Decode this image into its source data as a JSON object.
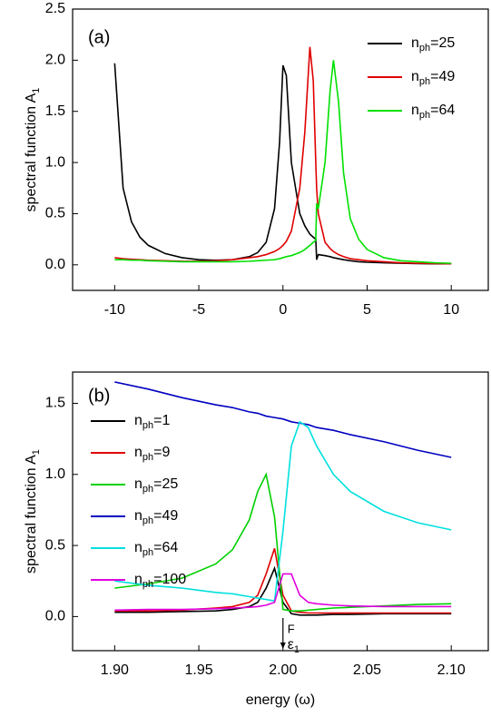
{
  "chart_data": [
    {
      "type": "line",
      "panel_label": "(a)",
      "y_label": "spectral function A1",
      "x": [
        -10,
        -9.5,
        -9,
        -8.5,
        -8,
        -7,
        -6,
        -5,
        -4,
        -3,
        -2,
        -1.5,
        -1,
        -0.5,
        -0.2,
        0,
        0.2,
        0.5,
        1,
        1.3,
        1.6,
        1.8,
        1.95,
        2.0,
        2.1,
        2.5,
        2.8,
        3.0,
        3.3,
        3.6,
        4,
        4.5,
        5,
        6,
        7,
        8,
        9,
        10
      ],
      "series": [
        {
          "name": "nph=25",
          "color": "#000000",
          "values": [
            1.97,
            0.75,
            0.42,
            0.27,
            0.19,
            0.11,
            0.07,
            0.05,
            0.045,
            0.05,
            0.08,
            0.12,
            0.22,
            0.55,
            1.2,
            1.95,
            1.85,
            1.0,
            0.5,
            0.38,
            0.3,
            0.27,
            0.25,
            0.05,
            0.1,
            0.09,
            0.08,
            0.07,
            0.06,
            0.05,
            0.04,
            0.03,
            0.025,
            0.02,
            0.015,
            0.012,
            0.01,
            0.01
          ]
        },
        {
          "name": "nph=49",
          "color": "#e00000",
          "values": [
            0.07,
            0.06,
            0.055,
            0.05,
            0.045,
            0.04,
            0.035,
            0.035,
            0.04,
            0.05,
            0.07,
            0.08,
            0.1,
            0.13,
            0.16,
            0.19,
            0.23,
            0.33,
            0.75,
            1.3,
            2.13,
            1.8,
            1.0,
            0.75,
            0.5,
            0.22,
            0.16,
            0.13,
            0.1,
            0.08,
            0.06,
            0.05,
            0.04,
            0.03,
            0.02,
            0.015,
            0.012,
            0.01
          ]
        },
        {
          "name": "nph=64",
          "color": "#00e000",
          "values": [
            0.05,
            0.05,
            0.045,
            0.045,
            0.04,
            0.035,
            0.03,
            0.03,
            0.03,
            0.03,
            0.035,
            0.04,
            0.045,
            0.05,
            0.06,
            0.07,
            0.08,
            0.09,
            0.12,
            0.15,
            0.19,
            0.22,
            0.24,
            0.6,
            0.55,
            1.0,
            1.7,
            2.0,
            1.6,
            0.9,
            0.45,
            0.25,
            0.15,
            0.07,
            0.04,
            0.03,
            0.02,
            0.015
          ]
        }
      ],
      "xlim": [
        -12.5,
        12.2
      ],
      "xticks": [
        -10,
        -5,
        0,
        5,
        10
      ],
      "ylim": [
        -0.25,
        2.5
      ],
      "yticks": [
        {
          "value": 0,
          "label": "0.0"
        },
        {
          "value": 0.5,
          "label": "0.5"
        },
        {
          "value": 1,
          "label": "1.0"
        },
        {
          "value": 1.5,
          "label": "1.5"
        },
        {
          "value": 2,
          "label": "2.0"
        },
        {
          "value": 2.5,
          "label": "2.5"
        }
      ],
      "legend": "upper right"
    },
    {
      "type": "line",
      "panel_label": "(b)",
      "y_label": "spectral function A1",
      "x_label": "energy (ω)",
      "marker_label": "ε1",
      "marker_superscript": "F",
      "marker_x": 2.0,
      "x": [
        1.9,
        1.92,
        1.94,
        1.96,
        1.97,
        1.98,
        1.985,
        1.99,
        1.995,
        2.0,
        2.005,
        2.01,
        2.015,
        2.02,
        2.03,
        2.04,
        2.06,
        2.08,
        2.1
      ],
      "series": [
        {
          "name": "nph=1",
          "color": "#000000",
          "values": [
            0.03,
            0.03,
            0.035,
            0.04,
            0.05,
            0.07,
            0.1,
            0.2,
            0.34,
            0.1,
            0.02,
            0.01,
            0.01,
            0.01,
            0.015,
            0.015,
            0.02,
            0.02,
            0.02
          ]
        },
        {
          "name": "nph=9",
          "color": "#e00000",
          "values": [
            0.04,
            0.04,
            0.045,
            0.06,
            0.07,
            0.1,
            0.15,
            0.3,
            0.48,
            0.15,
            0.04,
            0.03,
            0.025,
            0.025,
            0.025,
            0.025,
            0.025,
            0.025,
            0.025
          ]
        },
        {
          "name": "nph=25",
          "color": "#00d000",
          "values": [
            0.2,
            0.23,
            0.27,
            0.37,
            0.47,
            0.68,
            0.88,
            1.0,
            0.7,
            0.05,
            0.04,
            0.04,
            0.045,
            0.05,
            0.06,
            0.065,
            0.075,
            0.085,
            0.09
          ]
        },
        {
          "name": "nph=49",
          "color": "#0000c0",
          "values": [
            1.65,
            1.6,
            1.54,
            1.49,
            1.47,
            1.44,
            1.43,
            1.41,
            1.4,
            1.39,
            1.37,
            1.36,
            1.35,
            1.33,
            1.31,
            1.28,
            1.23,
            1.17,
            1.12
          ]
        },
        {
          "name": "nph=64",
          "color": "#00e0e0",
          "values": [
            0.25,
            0.22,
            0.2,
            0.17,
            0.16,
            0.14,
            0.13,
            0.12,
            0.11,
            0.6,
            1.2,
            1.37,
            1.33,
            1.2,
            1.0,
            0.88,
            0.74,
            0.66,
            0.61
          ]
        },
        {
          "name": "nph=100",
          "color": "#e000e0",
          "values": [
            0.045,
            0.05,
            0.05,
            0.055,
            0.06,
            0.065,
            0.07,
            0.08,
            0.1,
            0.3,
            0.3,
            0.15,
            0.1,
            0.09,
            0.08,
            0.075,
            0.07,
            0.07,
            0.07
          ]
        }
      ],
      "xlim": [
        1.875,
        2.122
      ],
      "xticks": [
        {
          "value": 1.9,
          "label": "1.90"
        },
        {
          "value": 1.95,
          "label": "1.95"
        },
        {
          "value": 2.0,
          "label": "2.00"
        },
        {
          "value": 2.05,
          "label": "2.05"
        },
        {
          "value": 2.1,
          "label": "2.10"
        }
      ],
      "ylim": [
        -0.24,
        1.72
      ],
      "yticks": [
        {
          "value": 0,
          "label": "0.0"
        },
        {
          "value": 0.5,
          "label": "0.5"
        },
        {
          "value": 1,
          "label": "1.0"
        },
        {
          "value": 1.5,
          "label": "1.5"
        }
      ],
      "legend": "upper left"
    }
  ]
}
